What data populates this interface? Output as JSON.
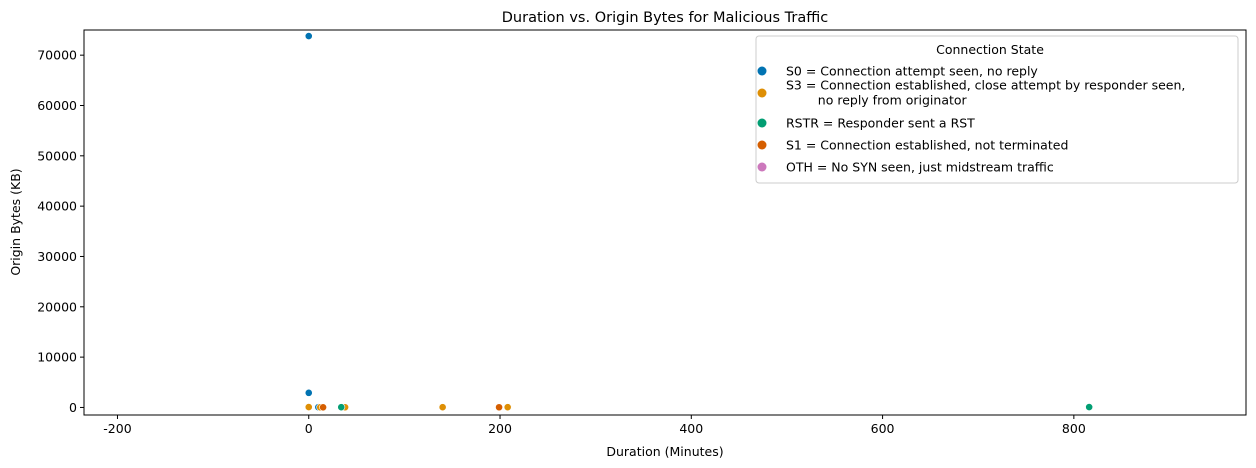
{
  "chart_data": {
    "type": "scatter",
    "title": "Duration vs. Origin Bytes for Malicious Traffic",
    "xlabel": "Duration (Minutes)",
    "ylabel": "Origin Bytes (KB)",
    "xlim": [
      -235,
      980
    ],
    "ylim": [
      -1500,
      75000
    ],
    "xticks": [
      -200,
      0,
      200,
      400,
      600,
      800
    ],
    "yticks": [
      0,
      10000,
      20000,
      30000,
      40000,
      50000,
      60000,
      70000
    ],
    "grid": false,
    "legend": {
      "title": "Connection State",
      "placement": "top-right"
    },
    "series": [
      {
        "name": "S0 = Connection attempt seen, no reply",
        "color": "#0173b2",
        "points": [
          [
            0,
            73800
          ],
          [
            0,
            2900
          ],
          [
            10,
            60
          ],
          [
            14,
            40
          ]
        ]
      },
      {
        "name": "S3 = Connection established, close attempt by responder seen,\n        no reply from originator",
        "color": "#de8f05",
        "points": [
          [
            0,
            70
          ],
          [
            12,
            30
          ],
          [
            38,
            40
          ],
          [
            140,
            50
          ],
          [
            208,
            60
          ]
        ]
      },
      {
        "name": "RSTR = Responder sent a RST",
        "color": "#029e73",
        "points": [
          [
            34,
            50
          ],
          [
            816,
            80
          ]
        ]
      },
      {
        "name": "S1 = Connection established, not terminated",
        "color": "#d55e00",
        "points": [
          [
            15,
            30
          ],
          [
            199,
            40
          ]
        ]
      },
      {
        "name": "OTH = No SYN seen, just midstream traffic",
        "color": "#cc78bc",
        "points": []
      }
    ]
  }
}
